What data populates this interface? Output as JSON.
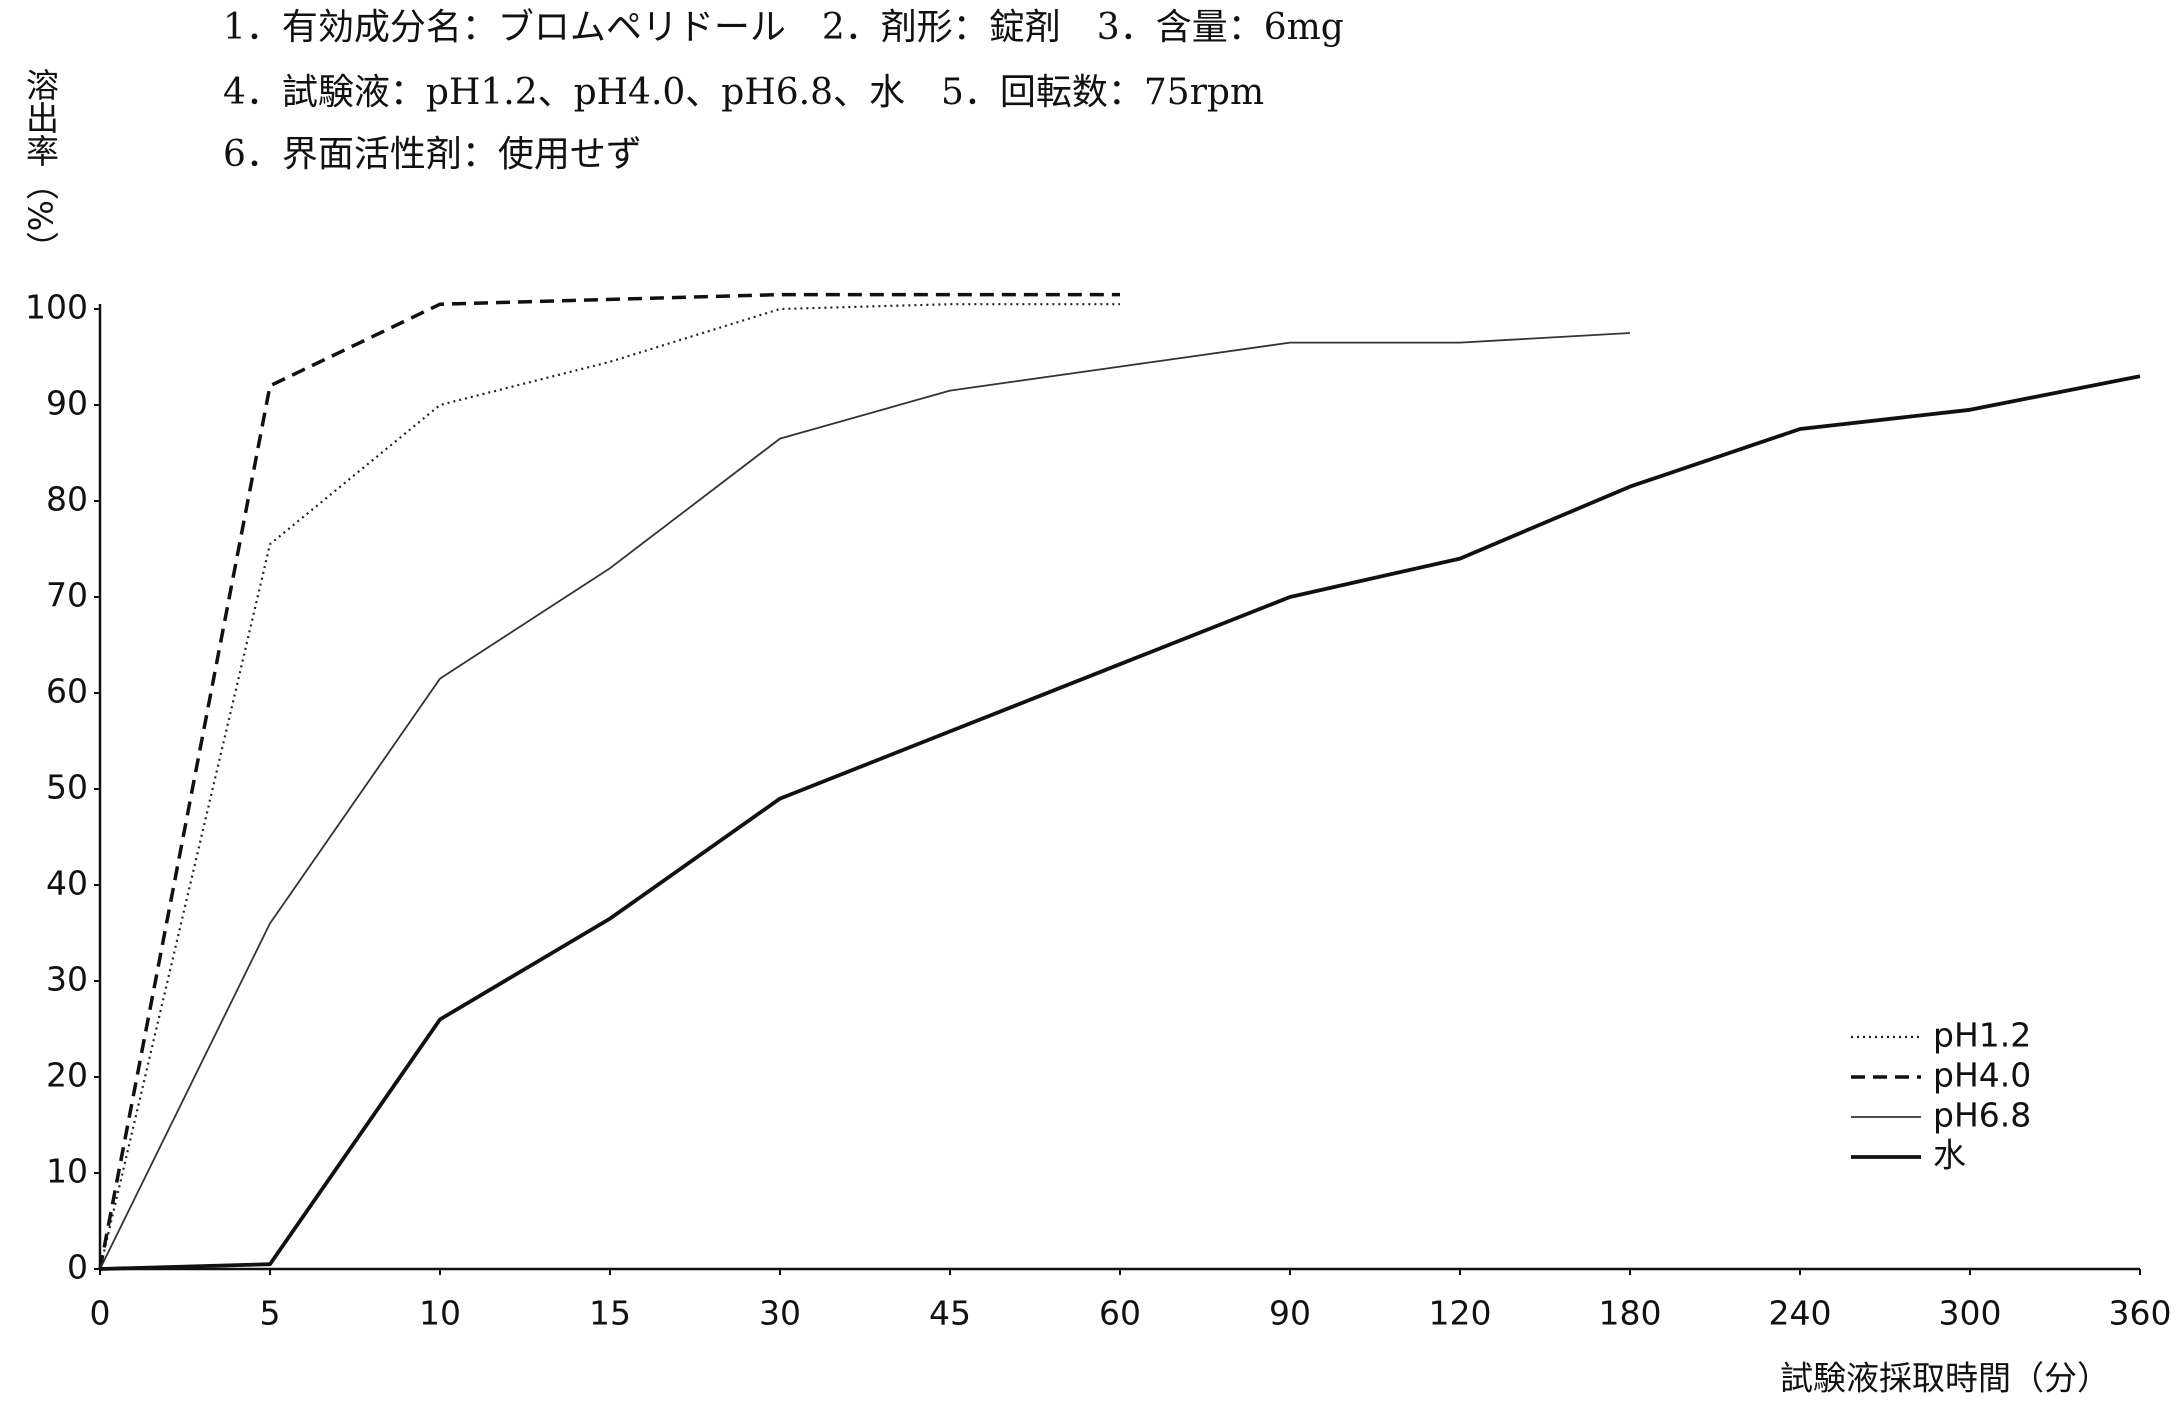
{
  "chart_data": {
    "type": "line",
    "title_lines": [
      "1．有効成分名：ブロムペリドール　2．剤形：錠剤　3．含量：6mg",
      "4．試験液：pH1.2、pH4.0、pH6.8、水　5．回転数：75rpm",
      "6．界面活性剤：使用せず"
    ],
    "y_label": "溶出率（%）",
    "x_label": "試験液採取時間（分）",
    "categories": [
      "0",
      "5",
      "10",
      "15",
      "30",
      "45",
      "60",
      "90",
      "120",
      "180",
      "240",
      "300",
      "360"
    ],
    "series": [
      {
        "name": "pH1.2",
        "color": "#222222",
        "style": "dotted",
        "values": [
          0,
          75.5,
          90,
          94.5,
          100,
          100.5,
          100.5,
          null,
          null,
          null,
          null,
          null,
          null
        ]
      },
      {
        "name": "pH4.0",
        "color": "#111111",
        "style": "dashed",
        "values": [
          0,
          92,
          100.5,
          101,
          101.5,
          101.5,
          101.5,
          null,
          null,
          null,
          null,
          null,
          null
        ]
      },
      {
        "name": "pH6.8",
        "color": "#333333",
        "style": "thin",
        "values": [
          0,
          36,
          61.5,
          73,
          86.5,
          91.5,
          94,
          96.5,
          96.5,
          97.5,
          null,
          null,
          null
        ]
      },
      {
        "name": "水",
        "color": "#111111",
        "style": "thick",
        "values": [
          0,
          0.5,
          26,
          36.5,
          49,
          56,
          63,
          70,
          74,
          81.5,
          87.5,
          89.5,
          93
        ]
      }
    ],
    "ylim": [
      0,
      100
    ],
    "yticks": [
      0,
      10,
      20,
      30,
      40,
      50,
      60,
      70,
      80,
      90,
      100
    ],
    "grid": false,
    "legend": "lower-right"
  }
}
